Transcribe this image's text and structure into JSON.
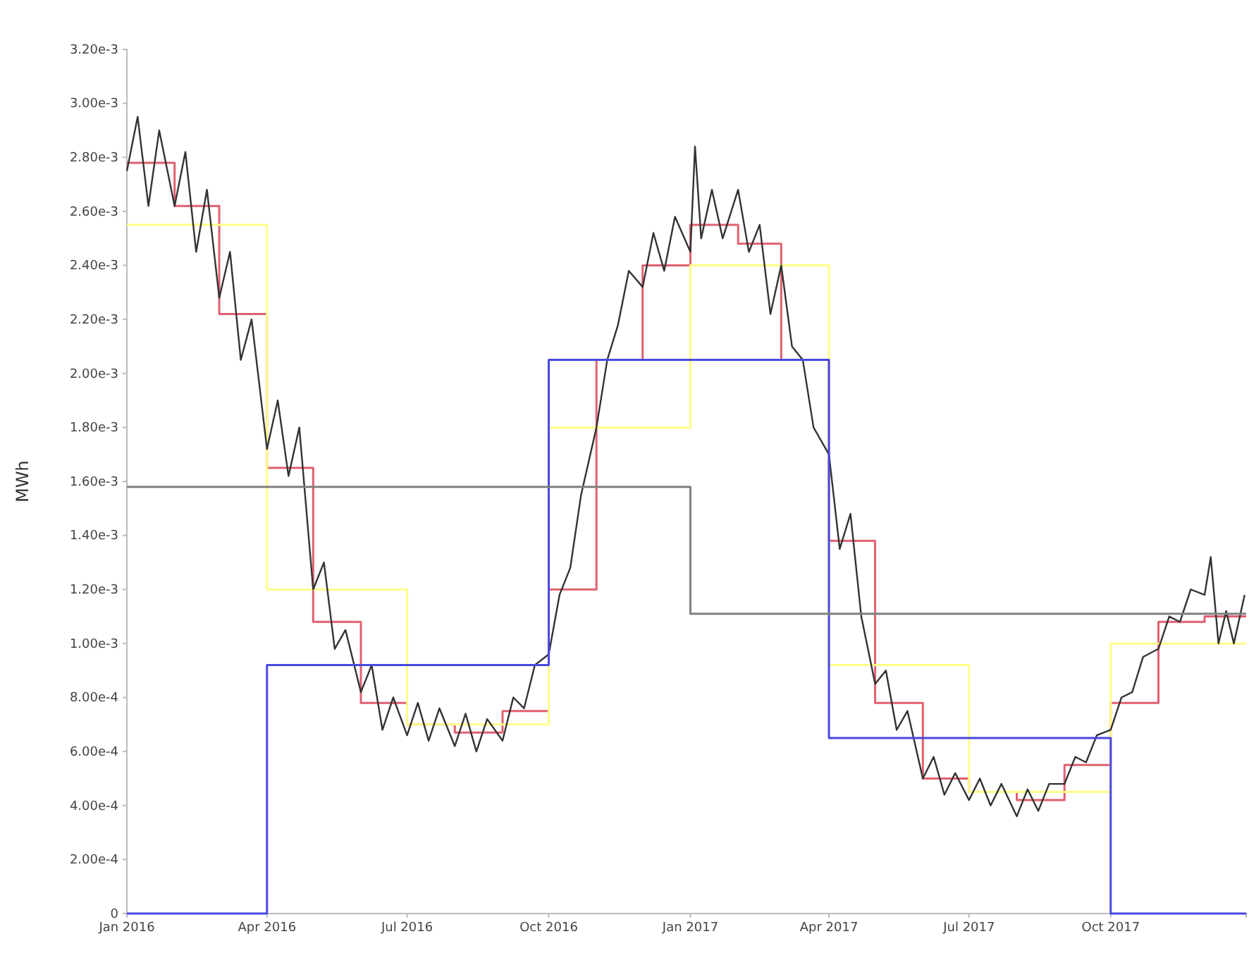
{
  "chart_data": {
    "type": "step",
    "ylabel": "MWh",
    "xlim": [
      "2016-01-01",
      "2017-12-28"
    ],
    "xticks": [
      {
        "value": "2016-01-01",
        "label": "Jan 2016"
      },
      {
        "value": "2016-04-01",
        "label": "Apr 2016"
      },
      {
        "value": "2016-07-01",
        "label": "Jul 2016"
      },
      {
        "value": "2016-10-01",
        "label": "Oct 2016"
      },
      {
        "value": "2017-01-01",
        "label": "Jan 2017"
      },
      {
        "value": "2017-04-01",
        "label": "Apr 2017"
      },
      {
        "value": "2017-07-01",
        "label": "Jul 2017"
      },
      {
        "value": "2017-10-01",
        "label": "Oct 2017"
      }
    ],
    "ylim": [
      0,
      0.0032
    ],
    "yticks": [
      0,
      {
        "value": 0.0002,
        "label": "2.00e-4"
      },
      {
        "value": 0.0004,
        "label": "4.00e-4"
      },
      {
        "value": 0.0006,
        "label": "6.00e-4"
      },
      {
        "value": 0.0008,
        "label": "8.00e-4"
      },
      {
        "value": 0.001,
        "label": "1.00e-3"
      },
      {
        "value": 0.0012,
        "label": "1.20e-3"
      },
      {
        "value": 0.0014,
        "label": "1.40e-3"
      },
      {
        "value": 0.0016,
        "label": "1.60e-3"
      },
      {
        "value": 0.0018,
        "label": "1.80e-3"
      },
      {
        "value": 0.002,
        "label": "2.00e-3"
      },
      {
        "value": 0.0022,
        "label": "2.20e-3"
      },
      {
        "value": 0.0024,
        "label": "2.40e-3"
      },
      {
        "value": 0.0026,
        "label": "2.60e-3"
      },
      {
        "value": 0.0028,
        "label": "2.80e-3"
      },
      {
        "value": 0.003,
        "label": "3.00e-3"
      },
      {
        "value": 0.0032,
        "label": "3.20e-3"
      }
    ],
    "series": [
      {
        "color": "#e06070",
        "x": [
          "2016-01-01",
          "2016-02-01",
          "2016-03-01",
          "2016-04-01",
          "2016-05-01",
          "2016-06-01",
          "2016-07-01",
          "2016-08-01",
          "2016-09-01",
          "2016-10-01",
          "2016-11-01",
          "2016-12-01",
          "2017-01-01",
          "2017-02-01",
          "2017-03-01",
          "2017-04-01",
          "2017-05-01",
          "2017-06-01",
          "2017-07-01",
          "2017-08-01",
          "2017-09-01",
          "2017-10-01",
          "2017-11-01",
          "2017-12-01",
          "2017-12-28"
        ],
        "values": [
          0.00278,
          0.00262,
          0.00222,
          0.00165,
          0.00108,
          0.00078,
          0.0007,
          0.00067,
          0.00075,
          0.0012,
          0.00205,
          0.0024,
          0.00255,
          0.00248,
          0.00205,
          0.00138,
          0.00078,
          0.0005,
          0.00045,
          0.00042,
          0.00055,
          0.00078,
          0.00108,
          0.0011,
          0.0011
        ]
      },
      {
        "color": "#ffff88",
        "x": [
          "2016-01-01",
          "2016-04-01",
          "2016-07-01",
          "2016-10-01",
          "2017-01-01",
          "2017-04-01",
          "2017-07-01",
          "2017-10-01",
          "2017-12-28"
        ],
        "values": [
          0.00255,
          0.0012,
          0.0007,
          0.0018,
          0.0024,
          0.00092,
          0.00045,
          0.001,
          0.001
        ]
      },
      {
        "type": "line",
        "color": "#333333",
        "x": [
          "2016-01-01",
          "2016-01-08",
          "2016-01-15",
          "2016-01-22",
          "2016-02-01",
          "2016-02-08",
          "2016-02-15",
          "2016-02-22",
          "2016-03-01",
          "2016-03-08",
          "2016-03-15",
          "2016-03-22",
          "2016-04-01",
          "2016-04-08",
          "2016-04-15",
          "2016-04-22",
          "2016-05-01",
          "2016-05-08",
          "2016-05-15",
          "2016-05-22",
          "2016-06-01",
          "2016-06-08",
          "2016-06-15",
          "2016-06-22",
          "2016-07-01",
          "2016-07-08",
          "2016-07-15",
          "2016-07-22",
          "2016-08-01",
          "2016-08-08",
          "2016-08-15",
          "2016-08-22",
          "2016-09-01",
          "2016-09-08",
          "2016-09-15",
          "2016-09-22",
          "2016-10-01",
          "2016-10-08",
          "2016-10-15",
          "2016-10-22",
          "2016-11-01",
          "2016-11-08",
          "2016-11-15",
          "2016-11-22",
          "2016-12-01",
          "2016-12-08",
          "2016-12-15",
          "2016-12-22",
          "2017-01-01",
          "2017-01-04",
          "2017-01-08",
          "2017-01-15",
          "2017-01-22",
          "2017-02-01",
          "2017-02-08",
          "2017-02-15",
          "2017-02-22",
          "2017-03-01",
          "2017-03-08",
          "2017-03-15",
          "2017-03-22",
          "2017-04-01",
          "2017-04-08",
          "2017-04-15",
          "2017-04-22",
          "2017-05-01",
          "2017-05-08",
          "2017-05-15",
          "2017-05-22",
          "2017-06-01",
          "2017-06-08",
          "2017-06-15",
          "2017-06-22",
          "2017-07-01",
          "2017-07-08",
          "2017-07-15",
          "2017-07-22",
          "2017-08-01",
          "2017-08-08",
          "2017-08-15",
          "2017-08-22",
          "2017-09-01",
          "2017-09-08",
          "2017-09-15",
          "2017-09-22",
          "2017-10-01",
          "2017-10-08",
          "2017-10-15",
          "2017-10-22",
          "2017-11-01",
          "2017-11-08",
          "2017-11-15",
          "2017-11-22",
          "2017-12-01",
          "2017-12-05",
          "2017-12-10",
          "2017-12-15",
          "2017-12-20",
          "2017-12-27"
        ],
        "values": [
          0.00275,
          0.00295,
          0.00262,
          0.0029,
          0.00262,
          0.00282,
          0.00245,
          0.00268,
          0.00228,
          0.00245,
          0.00205,
          0.0022,
          0.00172,
          0.0019,
          0.00162,
          0.0018,
          0.0012,
          0.0013,
          0.00098,
          0.00105,
          0.00082,
          0.00092,
          0.00068,
          0.0008,
          0.00066,
          0.00078,
          0.00064,
          0.00076,
          0.00062,
          0.00074,
          0.0006,
          0.00072,
          0.00064,
          0.0008,
          0.00076,
          0.00092,
          0.00096,
          0.00118,
          0.00128,
          0.00155,
          0.0018,
          0.00205,
          0.00218,
          0.00238,
          0.00232,
          0.00252,
          0.00238,
          0.00258,
          0.00245,
          0.00284,
          0.0025,
          0.00268,
          0.0025,
          0.00268,
          0.00245,
          0.00255,
          0.00222,
          0.0024,
          0.0021,
          0.00205,
          0.0018,
          0.0017,
          0.00135,
          0.00148,
          0.0011,
          0.00085,
          0.0009,
          0.00068,
          0.00075,
          0.0005,
          0.00058,
          0.00044,
          0.00052,
          0.00042,
          0.0005,
          0.0004,
          0.00048,
          0.00036,
          0.00046,
          0.00038,
          0.00048,
          0.00048,
          0.00058,
          0.00056,
          0.00066,
          0.00068,
          0.0008,
          0.00082,
          0.00095,
          0.00098,
          0.0011,
          0.00108,
          0.0012,
          0.00118,
          0.00132,
          0.001,
          0.00112,
          0.001,
          0.00118
        ]
      },
      {
        "color": "#4848e0",
        "x": [
          "2016-01-01",
          "2016-04-01",
          "2016-10-01",
          "2017-04-01",
          "2017-10-01",
          "2017-12-28"
        ],
        "values": [
          0,
          0.00092,
          0.00205,
          0.00065,
          0,
          0
        ]
      },
      {
        "color": "#808080",
        "x": [
          "2016-01-01",
          "2017-01-01",
          "2017-12-28"
        ],
        "values": [
          0.00158,
          0.00111,
          0.00111
        ]
      }
    ]
  }
}
